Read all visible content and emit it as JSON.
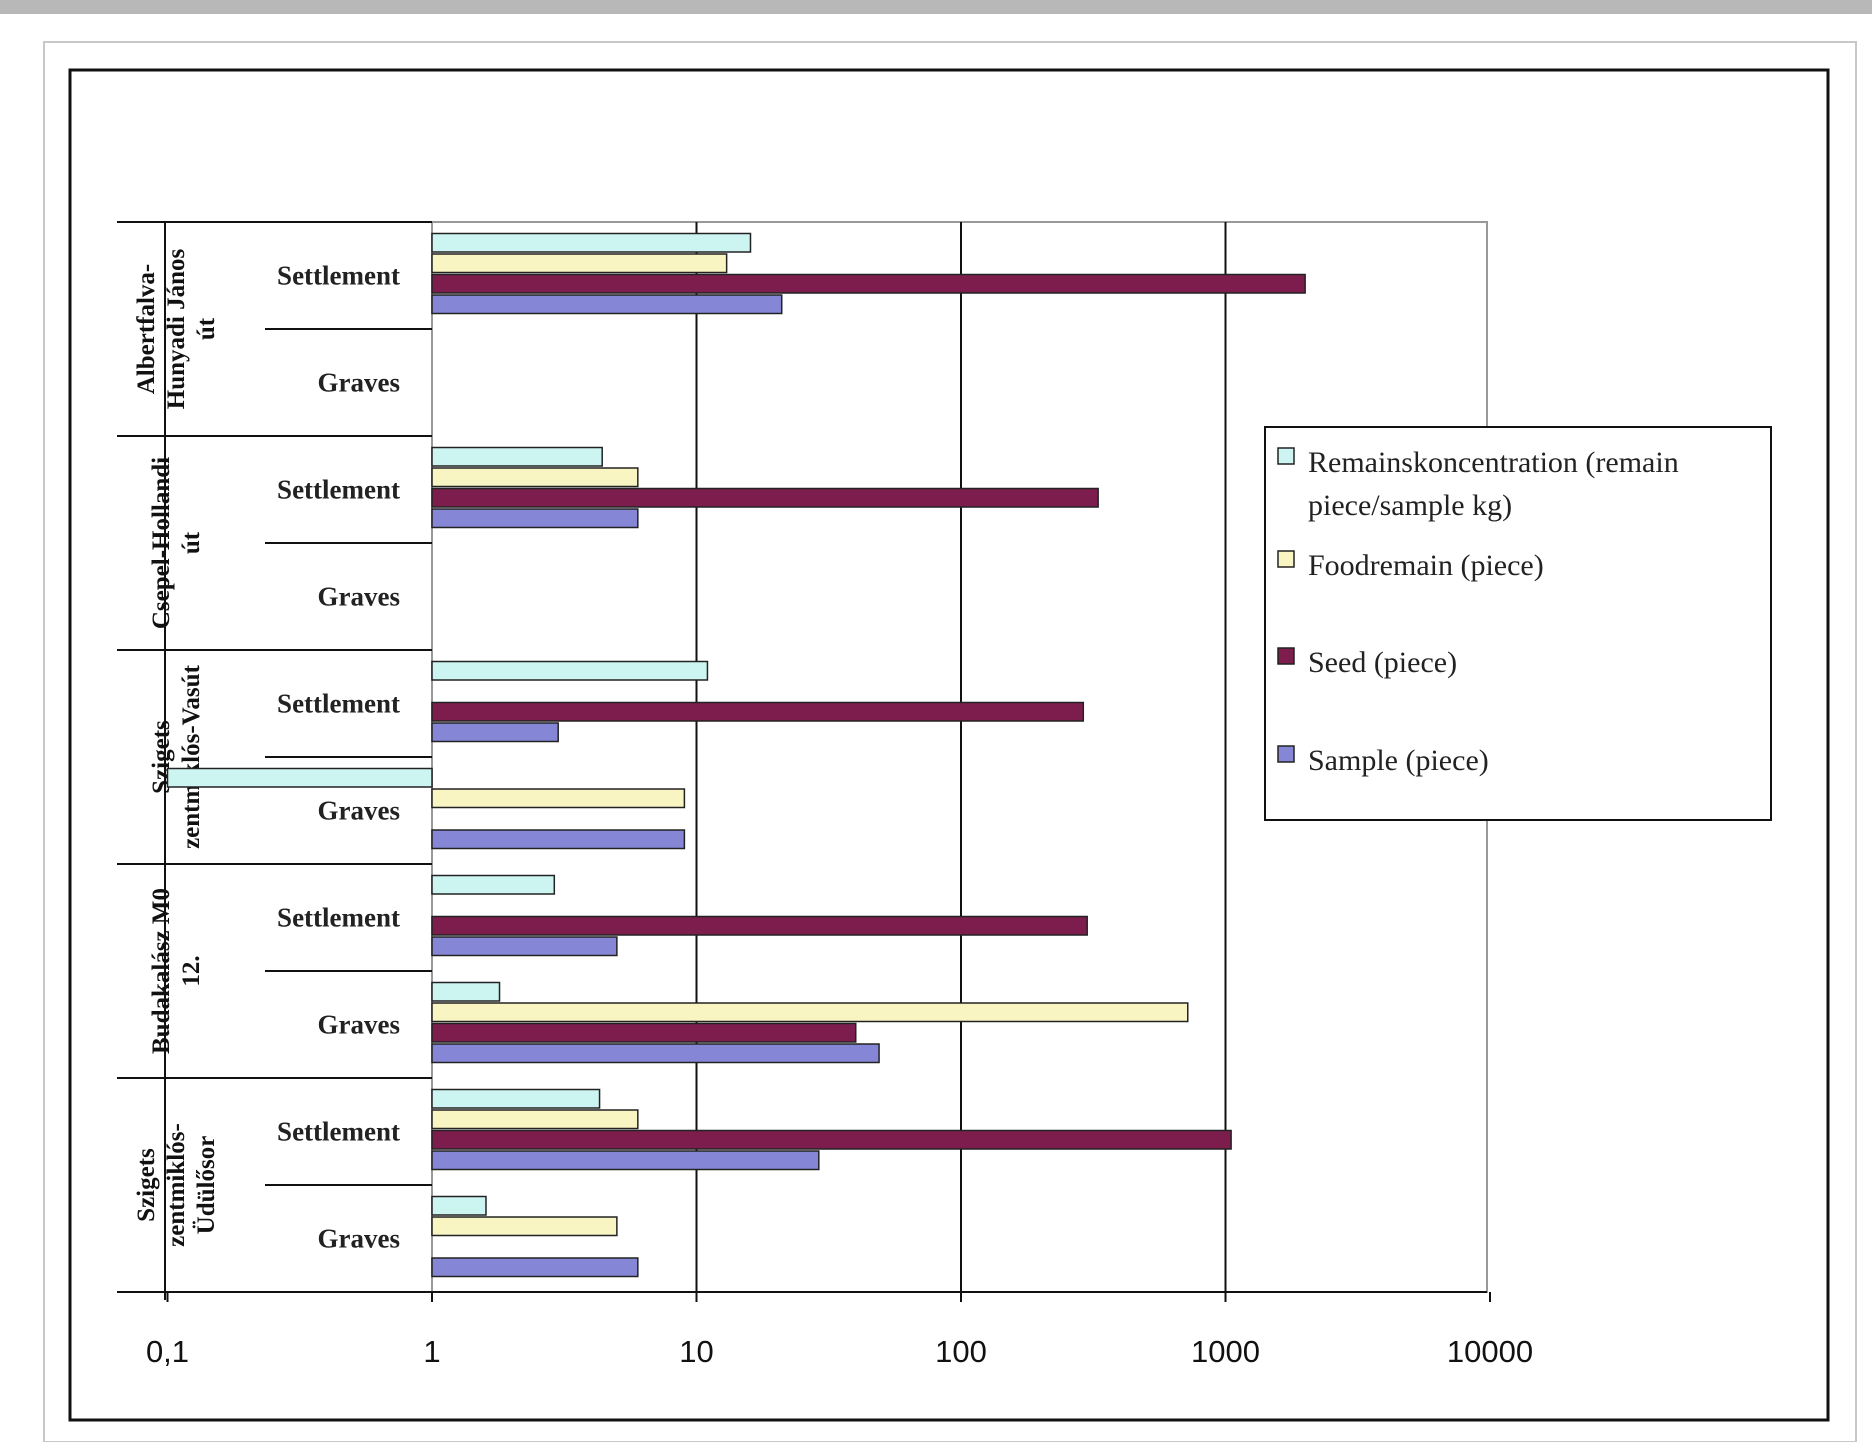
{
  "chart_data": {
    "type": "bar",
    "orientation": "horizontal",
    "x_scale": "log",
    "xlim": [
      0.1,
      10000
    ],
    "x_ticks": [
      "0,1",
      "1",
      "10",
      "100",
      "1000",
      "10000"
    ],
    "x_tick_values": [
      0.1,
      1,
      10,
      100,
      1000,
      10000
    ],
    "grid": "vertical gridlines at 1, 10, 100, 1000",
    "legend_position": "right",
    "groups": [
      {
        "site": "Albertfalva-Hunyadi János út",
        "categories": [
          {
            "label": "Settlement",
            "values": {
              "remain_concentration": 16,
              "food_remain": 13,
              "seed": 2000,
              "sample": 21
            }
          },
          {
            "label": "Graves",
            "values": {
              "remain_concentration": null,
              "food_remain": null,
              "seed": null,
              "sample": null
            }
          }
        ]
      },
      {
        "site": "Csepel-Hollandi út",
        "categories": [
          {
            "label": "Settlement",
            "values": {
              "remain_concentration": 4.4,
              "food_remain": 6,
              "seed": 330,
              "sample": 6
            }
          },
          {
            "label": "Graves",
            "values": {
              "remain_concentration": null,
              "food_remain": null,
              "seed": null,
              "sample": null
            }
          }
        ]
      },
      {
        "site": "Szigetszentmiklós-Vasút",
        "categories": [
          {
            "label": "Settlement",
            "values": {
              "remain_concentration": 11,
              "food_remain": null,
              "seed": 290,
              "sample": 3
            }
          },
          {
            "label": "Graves",
            "values": {
              "remain_concentration": 0.1,
              "food_remain": 9,
              "seed": null,
              "sample": 9
            }
          }
        ]
      },
      {
        "site": "Budakalász M0 12.",
        "categories": [
          {
            "label": "Settlement",
            "values": {
              "remain_concentration": 2.9,
              "food_remain": null,
              "seed": 300,
              "sample": 5
            }
          },
          {
            "label": "Graves",
            "values": {
              "remain_concentration": 1.8,
              "food_remain": 720,
              "seed": 40,
              "sample": 49
            }
          }
        ]
      },
      {
        "site": "Szigetszentmiklós-Üdülősor",
        "categories": [
          {
            "label": "Settlement",
            "values": {
              "remain_concentration": 4.3,
              "food_remain": 6,
              "seed": 1050,
              "sample": 29
            }
          },
          {
            "label": "Graves",
            "values": {
              "remain_concentration": 1.6,
              "food_remain": 5,
              "seed": null,
              "sample": 6
            }
          }
        ]
      }
    ],
    "site_label_lines": [
      [
        "Albertfalva-",
        "Hunyadi János",
        "út"
      ],
      [
        "Csepel-Hollandi",
        "út"
      ],
      [
        "Szigets",
        "zentmiklós-Vasút"
      ],
      [
        "Budakalász M0",
        "12."
      ],
      [
        "Szigets",
        "zentmiklós-",
        "Üdülősor"
      ]
    ],
    "series": [
      {
        "key": "remain_concentration",
        "name": "Remainskoncentration (remain piece/sample kg)",
        "color": "#ccf5f2"
      },
      {
        "key": "food_remain",
        "name": "Foodremain (piece)",
        "color": "#f8f5c2"
      },
      {
        "key": "seed",
        "name": "Seed (piece)",
        "color": "#7d1d4e"
      },
      {
        "key": "sample",
        "name": "Sample (piece)",
        "color": "#8686d6"
      }
    ],
    "legend_lines": [
      [
        "Remainskoncentration (remain",
        "piece/sample kg)"
      ],
      [
        "Foodremain (piece)"
      ],
      [
        "Seed (piece)"
      ],
      [
        "Sample (piece)"
      ]
    ]
  }
}
